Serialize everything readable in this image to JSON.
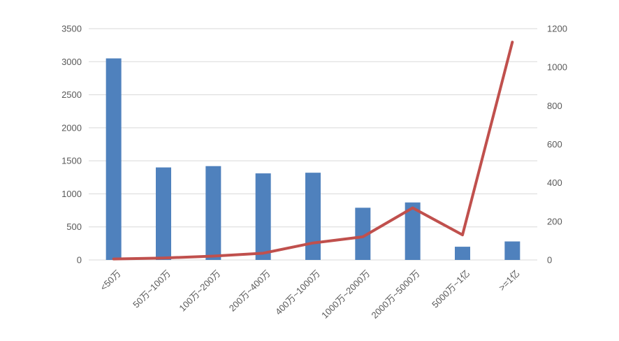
{
  "chart_data": {
    "type": "bar",
    "subtype": "combo-bar-line-dual-axis",
    "title": "",
    "xlabel": "",
    "ylabel_left": "",
    "ylabel_right": "",
    "grid": true,
    "legend": "none",
    "background_color": "#ffffff",
    "gridline_color": "#d9d9d9",
    "axis_label_color": "#595959",
    "categories": [
      "<50万",
      "50万~100万",
      "100万~200万",
      "200万~400万",
      "400万~1000万",
      "1000万~2000万",
      "2000万~5000万",
      "5000万~1亿",
      ">=1亿"
    ],
    "series": [
      {
        "kind": "bar",
        "axis": "left",
        "color": "#4f81bd",
        "values": [
          3050,
          1400,
          1420,
          1310,
          1320,
          790,
          870,
          200,
          280
        ]
      },
      {
        "kind": "line",
        "axis": "right",
        "color": "#c0504d",
        "values": [
          5,
          10,
          20,
          35,
          88,
          120,
          270,
          130,
          1130
        ]
      }
    ],
    "left_axis": {
      "min": 0,
      "max": 3500,
      "ticks": [
        0,
        500,
        1000,
        1500,
        2000,
        2500,
        3000,
        3500
      ],
      "tick_labels": [
        "0",
        "500",
        "1000",
        "1500",
        "2000",
        "2500",
        "3000",
        "3500"
      ]
    },
    "right_axis": {
      "min": 0,
      "max": 1200,
      "ticks": [
        0,
        200,
        400,
        600,
        800,
        1000,
        1200
      ],
      "tick_labels": [
        "0",
        "200",
        "400",
        "600",
        "800",
        "1000",
        "1200"
      ]
    }
  }
}
